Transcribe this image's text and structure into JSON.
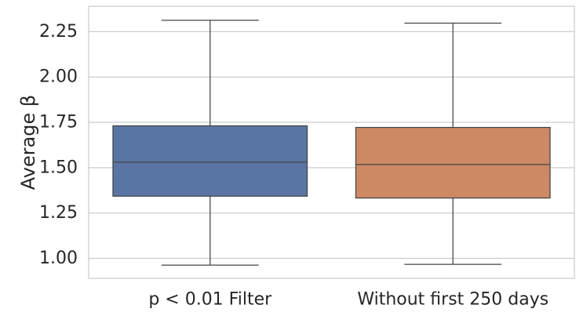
{
  "chart_data": {
    "type": "box",
    "ylabel": "Average β",
    "ylim": [
      0.89,
      2.39
    ],
    "yticks": [
      {
        "value": 1.0,
        "label": "1.00"
      },
      {
        "value": 1.25,
        "label": "1.25"
      },
      {
        "value": 1.5,
        "label": "1.50"
      },
      {
        "value": 1.75,
        "label": "1.75"
      },
      {
        "value": 2.0,
        "label": "2.00"
      },
      {
        "value": 2.25,
        "label": "2.25"
      }
    ],
    "grid": true,
    "categories": [
      "p < 0.01 Filter",
      "Without first 250 days"
    ],
    "boxes": [
      {
        "category": "p < 0.01 Filter",
        "whisker_low": 0.963,
        "q1": 1.343,
        "median": 1.531,
        "q3": 1.731,
        "whisker_high": 2.313,
        "color": "#5975A4"
      },
      {
        "category": "Without first 250 days",
        "whisker_low": 0.967,
        "q1": 1.333,
        "median": 1.518,
        "q3": 1.722,
        "whisker_high": 2.297,
        "color": "#CC8963"
      }
    ]
  }
}
